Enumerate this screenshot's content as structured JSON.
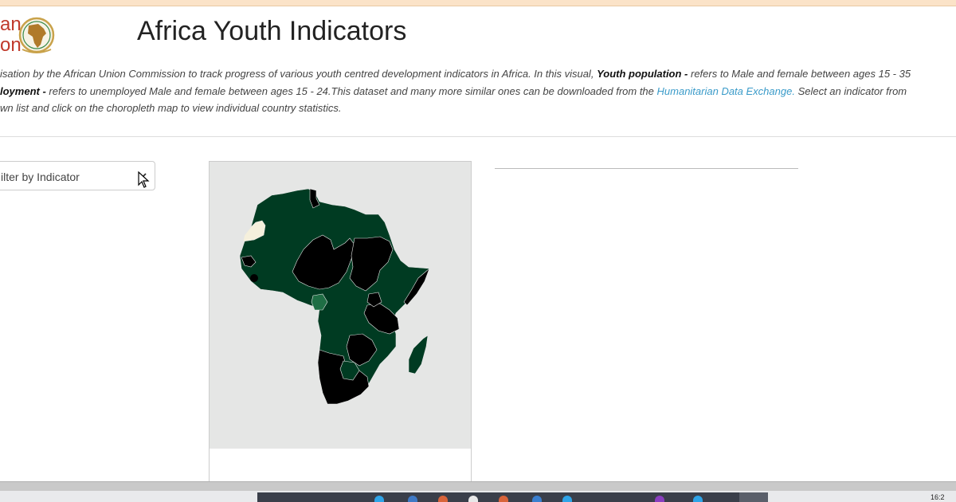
{
  "logo": {
    "text_line1": "an",
    "text_line2": "on"
  },
  "page_title": "Africa Youth Indicators",
  "description": {
    "line1_a": "isation by the African Union Commission to track progress of various youth centred development indicators in Africa. In this visual, ",
    "line1_b": "Youth population -",
    "line1_c": " refers to Male and female between ages 15 - 35",
    "line2_a": "loyment -",
    "line2_b": " refers to unemployed Male and female between ages 15 - 24.This dataset and many more similar ones can be downloaded from the ",
    "line2_link": "Humanitarian Data Exchange.",
    "line2_c": " Select an indicator from",
    "line3": "wn list and click on the choropleth map to view individual country statistics."
  },
  "filter": {
    "selected": "ilter by Indicator",
    "icon": "chevron-down-icon"
  },
  "map": {
    "colors": {
      "background": "#e5e6e5",
      "dark_green": "#003b22",
      "mid_green": "#1f6e45",
      "black": "#000000",
      "pale": "#f5f0dc"
    }
  },
  "taskbar": {
    "clock": "16:2"
  }
}
